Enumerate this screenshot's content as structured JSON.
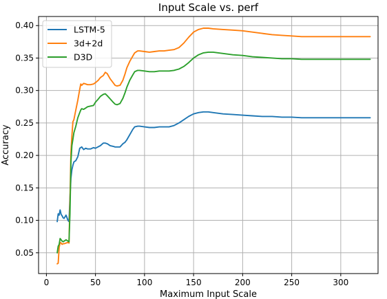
{
  "chart_data": {
    "type": "line",
    "title": "Input Scale vs. perf",
    "xlabel": "Maximum Input Scale",
    "ylabel": "Accuracy",
    "xlim": [
      -8,
      338
    ],
    "ylim": [
      0.018,
      0.414
    ],
    "xticks": [
      0,
      50,
      100,
      150,
      200,
      250,
      300
    ],
    "yticks": [
      0.05,
      0.1,
      0.15,
      0.2,
      0.25,
      0.3,
      0.35,
      0.4
    ],
    "ytick_labels": [
      "0.05",
      "0.10",
      "0.15",
      "0.20",
      "0.25",
      "0.30",
      "0.35",
      "0.40"
    ],
    "grid": true,
    "legend_position": "top-left",
    "series": [
      {
        "name": "LSTM-5",
        "color": "#1f77b4",
        "x": [
          11,
          12,
          13,
          14,
          15,
          16,
          17,
          18,
          20,
          22,
          23,
          24,
          25,
          26,
          27,
          28,
          30,
          32,
          34,
          36,
          38,
          40,
          42,
          45,
          48,
          50,
          55,
          58,
          60,
          62,
          65,
          68,
          70,
          72,
          75,
          78,
          80,
          82,
          85,
          88,
          90,
          93,
          95,
          100,
          105,
          110,
          115,
          120,
          125,
          130,
          135,
          140,
          145,
          150,
          155,
          160,
          165,
          170,
          180,
          190,
          200,
          210,
          220,
          230,
          240,
          250,
          260,
          270,
          280,
          290,
          300,
          310,
          320,
          330
        ],
        "y": [
          0.098,
          0.11,
          0.108,
          0.116,
          0.109,
          0.107,
          0.104,
          0.103,
          0.108,
          0.1,
          0.098,
          0.135,
          0.165,
          0.178,
          0.185,
          0.19,
          0.192,
          0.198,
          0.211,
          0.213,
          0.209,
          0.211,
          0.21,
          0.21,
          0.212,
          0.211,
          0.215,
          0.219,
          0.219,
          0.218,
          0.215,
          0.214,
          0.213,
          0.213,
          0.213,
          0.218,
          0.22,
          0.224,
          0.232,
          0.24,
          0.244,
          0.245,
          0.245,
          0.244,
          0.243,
          0.243,
          0.244,
          0.244,
          0.244,
          0.246,
          0.25,
          0.255,
          0.26,
          0.264,
          0.266,
          0.267,
          0.267,
          0.266,
          0.264,
          0.263,
          0.262,
          0.261,
          0.26,
          0.26,
          0.259,
          0.259,
          0.258,
          0.258,
          0.258,
          0.258,
          0.258,
          0.258,
          0.258,
          0.258
        ]
      },
      {
        "name": "3d+2d",
        "color": "#ff7f0e",
        "x": [
          11,
          12,
          13,
          14,
          15,
          16,
          17,
          18,
          20,
          22,
          23,
          24,
          25,
          26,
          27,
          28,
          30,
          32,
          34,
          35,
          36,
          38,
          40,
          42,
          45,
          48,
          50,
          53,
          55,
          58,
          60,
          62,
          65,
          68,
          70,
          72,
          75,
          78,
          80,
          82,
          85,
          88,
          90,
          93,
          95,
          100,
          105,
          110,
          115,
          120,
          125,
          130,
          135,
          140,
          145,
          150,
          155,
          160,
          165,
          170,
          180,
          190,
          200,
          210,
          220,
          230,
          240,
          250,
          260,
          270,
          280,
          290,
          300,
          310,
          320,
          330
        ],
        "y": [
          0.033,
          0.034,
          0.058,
          0.066,
          0.065,
          0.063,
          0.064,
          0.064,
          0.065,
          0.066,
          0.065,
          0.13,
          0.205,
          0.23,
          0.252,
          0.255,
          0.27,
          0.285,
          0.302,
          0.31,
          0.308,
          0.311,
          0.31,
          0.309,
          0.309,
          0.31,
          0.312,
          0.316,
          0.32,
          0.323,
          0.328,
          0.326,
          0.318,
          0.312,
          0.308,
          0.307,
          0.308,
          0.316,
          0.325,
          0.335,
          0.345,
          0.353,
          0.358,
          0.361,
          0.361,
          0.36,
          0.359,
          0.36,
          0.361,
          0.361,
          0.362,
          0.363,
          0.366,
          0.373,
          0.382,
          0.39,
          0.394,
          0.396,
          0.396,
          0.395,
          0.394,
          0.393,
          0.392,
          0.39,
          0.388,
          0.386,
          0.385,
          0.384,
          0.383,
          0.383,
          0.383,
          0.383,
          0.383,
          0.383,
          0.383,
          0.383
        ]
      },
      {
        "name": "D3D",
        "color": "#2ca02c",
        "x": [
          11,
          12,
          13,
          14,
          15,
          16,
          17,
          18,
          20,
          22,
          23,
          24,
          25,
          26,
          27,
          28,
          30,
          32,
          34,
          35,
          36,
          38,
          40,
          42,
          45,
          48,
          50,
          53,
          55,
          58,
          60,
          62,
          65,
          68,
          70,
          72,
          75,
          78,
          80,
          82,
          85,
          88,
          90,
          93,
          95,
          100,
          105,
          110,
          115,
          120,
          125,
          130,
          135,
          140,
          145,
          150,
          155,
          160,
          165,
          170,
          180,
          190,
          200,
          210,
          220,
          230,
          240,
          250,
          260,
          270,
          280,
          290,
          300,
          310,
          320,
          330
        ],
        "y": [
          0.05,
          0.06,
          0.063,
          0.072,
          0.07,
          0.068,
          0.067,
          0.068,
          0.07,
          0.068,
          0.067,
          0.11,
          0.19,
          0.215,
          0.225,
          0.235,
          0.245,
          0.258,
          0.266,
          0.27,
          0.272,
          0.271,
          0.273,
          0.275,
          0.276,
          0.277,
          0.282,
          0.287,
          0.291,
          0.294,
          0.295,
          0.292,
          0.287,
          0.282,
          0.279,
          0.278,
          0.28,
          0.288,
          0.296,
          0.305,
          0.316,
          0.324,
          0.329,
          0.331,
          0.331,
          0.33,
          0.329,
          0.329,
          0.33,
          0.33,
          0.33,
          0.331,
          0.333,
          0.337,
          0.343,
          0.35,
          0.355,
          0.358,
          0.359,
          0.359,
          0.357,
          0.355,
          0.354,
          0.352,
          0.351,
          0.35,
          0.349,
          0.349,
          0.348,
          0.348,
          0.348,
          0.348,
          0.348,
          0.348,
          0.348,
          0.348
        ]
      }
    ]
  }
}
